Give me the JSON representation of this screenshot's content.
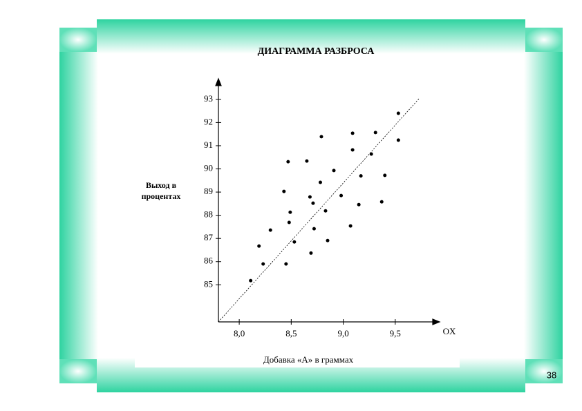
{
  "chart_data": {
    "type": "scatter",
    "title": "ДИАГРАММА РАЗБРОСА",
    "xlabel": "Добавка «А» в граммах",
    "ylabel": [
      "Выход в",
      "процентах"
    ],
    "x_axis_name": "OX",
    "page_number": "38",
    "color": "#000000",
    "xlim": [
      7.8,
      9.9
    ],
    "ylim": [
      83.4,
      93.8
    ],
    "xticks": [
      {
        "value": 8,
        "label": "8,0"
      },
      {
        "value": 8.5,
        "label": "8,5"
      },
      {
        "value": 9,
        "label": "9,0"
      },
      {
        "value": 9.5,
        "label": "9,5"
      }
    ],
    "yticks": [
      85,
      86,
      87,
      88,
      89,
      90,
      91,
      92,
      93
    ],
    "x": [
      8.11,
      8.19,
      8.23,
      8.3,
      8.43,
      8.45,
      8.47,
      8.48,
      8.49,
      8.53,
      8.65,
      8.68,
      8.69,
      8.71,
      8.72,
      8.78,
      8.79,
      8.83,
      8.85,
      8.91,
      8.98,
      9.07,
      9.09,
      9.09,
      9.15,
      9.17,
      9.27,
      9.31,
      9.37,
      9.4,
      9.53,
      9.53
    ],
    "values": [
      85.18,
      86.67,
      85.9,
      87.36,
      89.03,
      85.9,
      90.31,
      87.69,
      88.13,
      86.85,
      90.34,
      88.79,
      86.37,
      88.52,
      87.42,
      89.42,
      91.39,
      88.19,
      86.91,
      89.93,
      88.85,
      87.54,
      91.54,
      90.82,
      88.46,
      89.7,
      90.64,
      91.57,
      88.58,
      89.72,
      92.4,
      91.24
    ]
  }
}
